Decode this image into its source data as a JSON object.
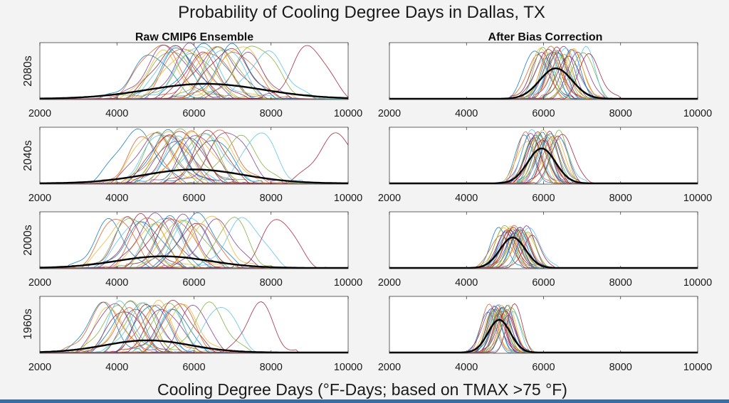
{
  "title": "Probability of Cooling Degree Days in Dallas, TX",
  "xlabel": "Cooling Degree Days (°F-Days; based on TMAX >75 °F)",
  "column_titles": [
    "Raw CMIP6 Ensemble",
    "After Bias Correction"
  ],
  "row_labels": [
    "2080s",
    "2040s",
    "2000s",
    "1960s"
  ],
  "colors": {
    "background": "#f3f3f4",
    "axes_face": "#ffffff",
    "ensemble_mean": "#000000",
    "members": [
      "#0072bd",
      "#d95319",
      "#edb120",
      "#7e2f8e",
      "#77ac30",
      "#4dbeee",
      "#a2142f"
    ],
    "bottom_bar": "#3d6da0"
  },
  "chart_data": {
    "type": "line",
    "layout": "4 rows x 2 columns of density plots",
    "xlim": [
      2000,
      10000
    ],
    "xticks": [
      2000,
      4000,
      6000,
      8000,
      10000
    ],
    "ylim": [
      0,
      1
    ],
    "y_tick_labels": "none",
    "grid": false,
    "legend": "none",
    "member_count_shown": 28,
    "panels": [
      {
        "row": "2080s",
        "column": "Raw CMIP6 Ensemble",
        "ensemble_mean": {
          "center": 6300,
          "spread": 1500,
          "peak": 0.27
        },
        "member_centers": [
          4900,
          5100,
          5200,
          5300,
          5400,
          5500,
          5500,
          5600,
          5700,
          5800,
          5900,
          6000,
          6100,
          6200,
          6300,
          6400,
          6500,
          6600,
          6700,
          6800,
          6900,
          7000,
          7100,
          7200,
          7400,
          7600,
          7900,
          9000
        ],
        "member_peak": 0.97,
        "member_spread": 480
      },
      {
        "row": "2080s",
        "column": "After Bias Correction",
        "ensemble_mean": {
          "center": 6320,
          "spread": 420,
          "peak": 0.55
        },
        "member_centers": [
          5800,
          5850,
          5900,
          5950,
          6000,
          6050,
          6100,
          6150,
          6200,
          6200,
          6250,
          6300,
          6300,
          6350,
          6400,
          6400,
          6450,
          6500,
          6550,
          6600,
          6650,
          6700,
          6750,
          6800,
          6900,
          7000,
          7100,
          7200
        ],
        "member_peak": 0.92,
        "member_spread": 260
      },
      {
        "row": "2040s",
        "column": "Raw CMIP6 Ensemble",
        "ensemble_mean": {
          "center": 6000,
          "spread": 1300,
          "peak": 0.25
        },
        "member_centers": [
          4500,
          4700,
          4900,
          5000,
          5100,
          5200,
          5300,
          5300,
          5400,
          5400,
          5500,
          5600,
          5600,
          5700,
          5800,
          5900,
          6000,
          6100,
          6200,
          6300,
          6400,
          6500,
          6600,
          6700,
          6900,
          7200,
          7700,
          9700
        ],
        "member_peak": 0.95,
        "member_spread": 450
      },
      {
        "row": "2040s",
        "column": "After Bias Correction",
        "ensemble_mean": {
          "center": 5950,
          "spread": 360,
          "peak": 0.63
        },
        "member_centers": [
          5500,
          5550,
          5600,
          5650,
          5700,
          5700,
          5750,
          5800,
          5800,
          5850,
          5850,
          5900,
          5900,
          5950,
          5950,
          6000,
          6000,
          6050,
          6100,
          6100,
          6150,
          6200,
          6250,
          6300,
          6350,
          6400,
          6450,
          6500
        ],
        "member_peak": 0.93,
        "member_spread": 240
      },
      {
        "row": "2000s",
        "column": "Raw CMIP6 Ensemble",
        "ensemble_mean": {
          "center": 5200,
          "spread": 1200,
          "peak": 0.21
        },
        "member_centers": [
          3800,
          4000,
          4200,
          4300,
          4400,
          4500,
          4600,
          4700,
          4800,
          4900,
          5000,
          5100,
          5200,
          5300,
          5400,
          5500,
          5600,
          5700,
          5800,
          5900,
          6000,
          6100,
          6200,
          6400,
          6600,
          7000,
          7300,
          8200
        ],
        "member_peak": 0.95,
        "member_spread": 420
      },
      {
        "row": "2000s",
        "column": "After Bias Correction",
        "ensemble_mean": {
          "center": 5200,
          "spread": 330,
          "peak": 0.55
        },
        "member_centers": [
          4850,
          4900,
          4950,
          5000,
          5000,
          5050,
          5050,
          5100,
          5100,
          5150,
          5150,
          5200,
          5200,
          5200,
          5250,
          5250,
          5300,
          5300,
          5350,
          5350,
          5400,
          5400,
          5450,
          5500,
          5550,
          5600,
          5650,
          5700
        ],
        "member_peak": 0.74,
        "member_spread": 230
      },
      {
        "row": "1960s",
        "column": "Raw CMIP6 Ensemble",
        "ensemble_mean": {
          "center": 4800,
          "spread": 1100,
          "peak": 0.22
        },
        "member_centers": [
          3600,
          3700,
          3800,
          3900,
          4000,
          4100,
          4200,
          4300,
          4300,
          4400,
          4500,
          4600,
          4700,
          4800,
          4900,
          5000,
          5100,
          5200,
          5300,
          5400,
          5500,
          5500,
          5600,
          5700,
          6000,
          6400,
          6700,
          7700
        ],
        "member_peak": 0.92,
        "member_spread": 380
      },
      {
        "row": "1960s",
        "column": "After Bias Correction",
        "ensemble_mean": {
          "center": 4850,
          "spread": 290,
          "peak": 0.59
        },
        "member_centers": [
          4550,
          4600,
          4650,
          4650,
          4700,
          4700,
          4750,
          4750,
          4800,
          4800,
          4800,
          4850,
          4850,
          4850,
          4900,
          4900,
          4900,
          4950,
          4950,
          5000,
          5000,
          5050,
          5050,
          5100,
          5100,
          5150,
          5200,
          5250
        ],
        "member_peak": 0.85,
        "member_spread": 200
      }
    ]
  }
}
